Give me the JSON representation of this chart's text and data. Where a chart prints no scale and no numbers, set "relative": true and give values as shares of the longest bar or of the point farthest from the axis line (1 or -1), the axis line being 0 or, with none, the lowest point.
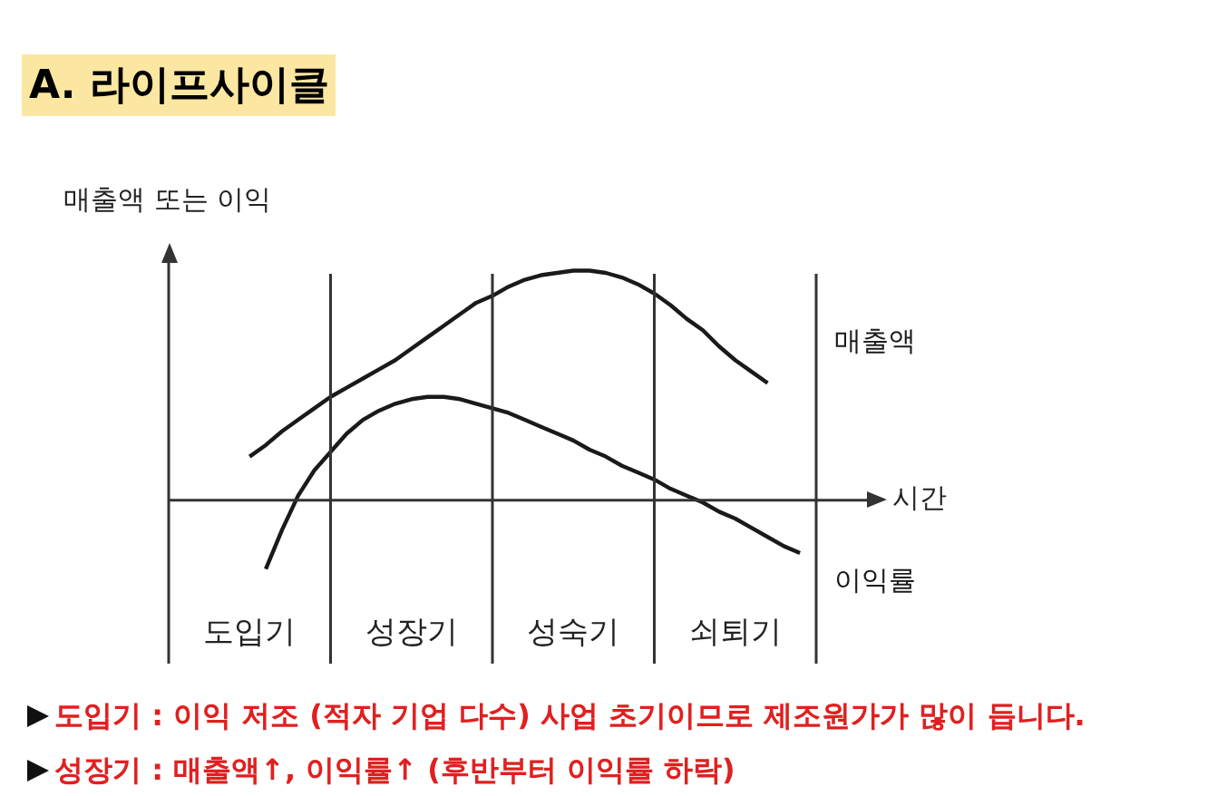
{
  "chart_data": {
    "type": "line",
    "title": "A. 라이프사이클",
    "xlabel": "시간",
    "ylabel": "매출액 또는 이익",
    "relative": true,
    "tick_labels": "x",
    "categories": [
      null,
      null,
      null,
      null,
      null,
      "도입기",
      null,
      null,
      null,
      null,
      null,
      null,
      null,
      null,
      null,
      "성장기",
      null,
      null,
      null,
      null,
      null,
      null,
      null,
      null,
      null,
      "성숙기",
      null,
      null,
      null,
      null,
      null,
      null,
      null,
      null,
      null,
      "쇠퇴기",
      null,
      null,
      null,
      null,
      null
    ],
    "series": [
      {
        "name": "매출액",
        "color": "#1a1a1a",
        "values": [
          null,
          null,
          null,
          null,
          null,
          0.19,
          0.24,
          0.3,
          0.35,
          0.4,
          0.45,
          0.49,
          0.53,
          0.57,
          0.61,
          0.66,
          0.71,
          0.76,
          0.81,
          0.86,
          0.89,
          0.93,
          0.96,
          0.98,
          0.99,
          1,
          1,
          0.99,
          0.97,
          0.94,
          0.9,
          0.85,
          0.79,
          0.74,
          0.67,
          0.61,
          0.56,
          0.51,
          null,
          null,
          null
        ]
      },
      {
        "name": "이익률",
        "color": "#1a1a1a",
        "values": [
          null,
          null,
          null,
          null,
          null,
          null,
          -0.3,
          -0.13,
          0.02,
          0.13,
          0.21,
          0.29,
          0.35,
          0.39,
          0.42,
          0.44,
          0.45,
          0.45,
          0.44,
          0.42,
          0.4,
          0.38,
          0.35,
          0.32,
          0.29,
          0.26,
          0.22,
          0.19,
          0.15,
          0.12,
          0.09,
          0.05,
          0.02,
          -0.01,
          -0.05,
          -0.08,
          -0.12,
          -0.16,
          -0.2,
          -0.23,
          null
        ]
      }
    ],
    "annotations": [
      "도입기 : 이익 저조 (적자 기업 다수) 사업 초기이므로 제조원가가 많이 듭니다.",
      "성장기 : 매출액↑, 이익률↑ (후반부터 이익률 하락)"
    ]
  }
}
